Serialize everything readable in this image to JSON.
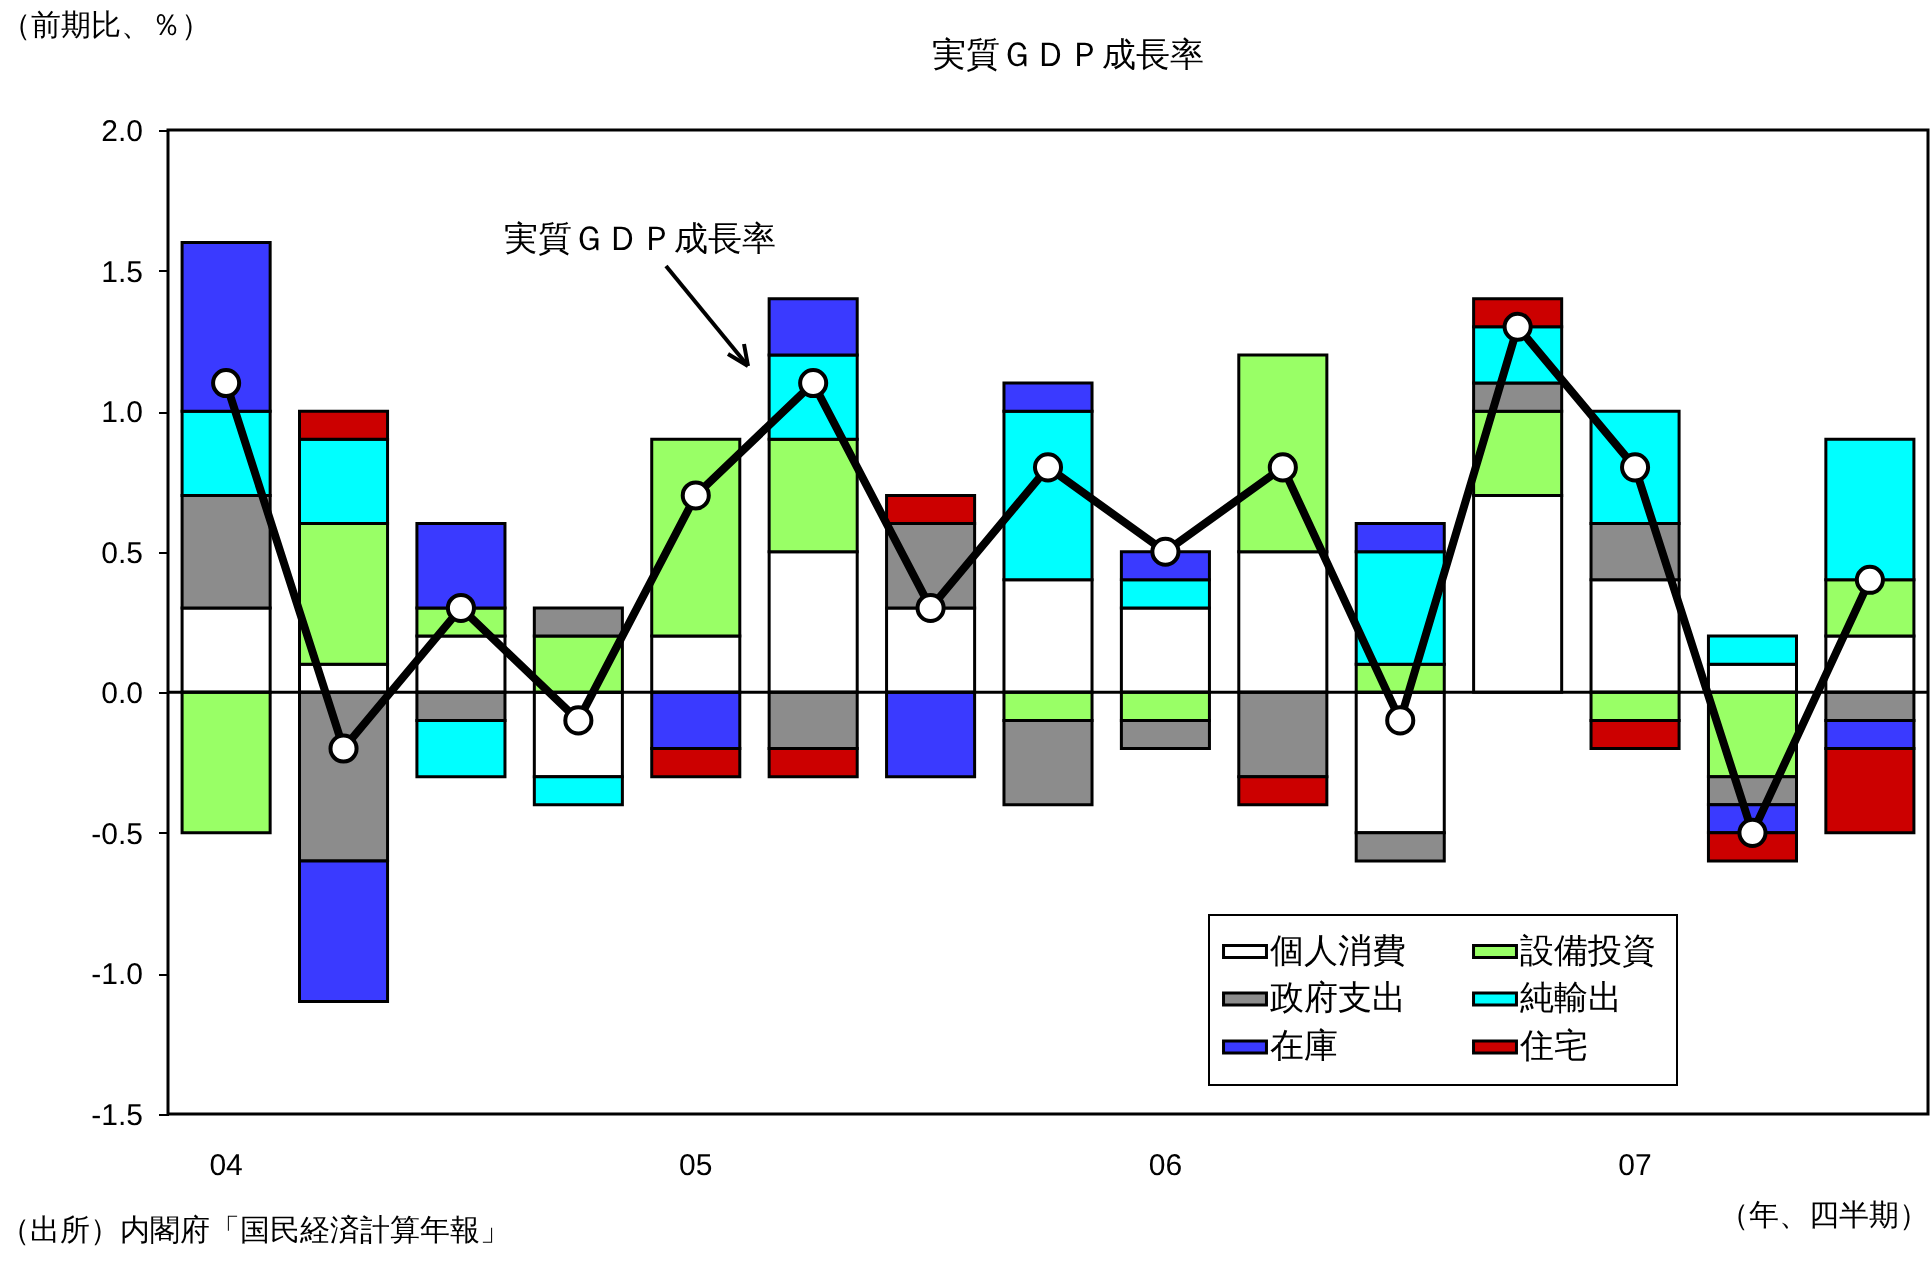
{
  "chart_data": {
    "type": "bar",
    "title": "実質ＧＤＰ成長率",
    "ylabel": "（前期比、％）",
    "xlabel": "（年、四半期）",
    "annotations": [
      "（出所）内閣府「国民経済計算年報」"
    ],
    "categories": [
      "04",
      null,
      null,
      null,
      "05",
      null,
      null,
      null,
      "06",
      null,
      null,
      null,
      "07",
      null,
      null
    ],
    "stacked": true,
    "series": [
      {
        "name": "個人消費",
        "color": "#ffffff",
        "values": [
          0.3,
          0.1,
          0.2,
          -0.3,
          0.2,
          0.5,
          0.3,
          0.4,
          0.3,
          0.5,
          -0.5,
          0.7,
          0.4,
          0.1,
          0.2
        ]
      },
      {
        "name": "設備投資",
        "color": "#99ff66",
        "values": [
          -0.5,
          0.5,
          0.1,
          0.2,
          0.7,
          0.4,
          null,
          -0.1,
          -0.1,
          0.7,
          0.1,
          0.3,
          -0.1,
          -0.3,
          0.2
        ]
      },
      {
        "name": "政府支出",
        "color": "#8c8c8c",
        "values": [
          0.4,
          -0.6,
          -0.1,
          0.1,
          null,
          -0.2,
          0.3,
          -0.3,
          -0.1,
          -0.3,
          -0.1,
          0.1,
          0.2,
          -0.1,
          -0.1
        ]
      },
      {
        "name": "純輸出",
        "color": "#00ffff",
        "values": [
          0.3,
          0.3,
          -0.2,
          -0.1,
          null,
          0.3,
          null,
          0.6,
          0.1,
          null,
          0.4,
          0.2,
          0.4,
          0.1,
          0.5
        ]
      },
      {
        "name": "在庫",
        "color": "#3a3aff",
        "values": [
          0.6,
          -0.5,
          0.3,
          null,
          -0.2,
          0.2,
          -0.3,
          0.1,
          0.1,
          null,
          0.1,
          null,
          null,
          -0.1,
          -0.1
        ]
      },
      {
        "name": "住宅",
        "color": "#cc0000",
        "values": [
          null,
          0.1,
          null,
          null,
          -0.1,
          -0.1,
          0.1,
          null,
          null,
          -0.1,
          null,
          0.1,
          -0.1,
          -0.1,
          -0.3
        ]
      },
      {
        "name": "実質ＧＤＰ成長率",
        "type": "line",
        "color": "#000000",
        "values": [
          1.1,
          -0.2,
          0.3,
          -0.1,
          0.7,
          1.1,
          0.3,
          0.8,
          0.5,
          0.8,
          -0.1,
          1.3,
          0.8,
          -0.5,
          0.4
        ]
      }
    ],
    "ylim": [
      -1.5,
      2.0
    ],
    "yticks": [
      {
        "value": -1.5,
        "label": "-1.5"
      },
      {
        "value": -1,
        "label": "-1.0"
      },
      {
        "value": -0.5,
        "label": "-0.5"
      },
      {
        "value": 0,
        "label": "0.0"
      },
      {
        "value": 0.5,
        "label": "0.5"
      },
      {
        "value": 1,
        "label": "1.0"
      },
      {
        "value": 1.5,
        "label": "1.5"
      },
      {
        "value": 2,
        "label": "2.0"
      }
    ],
    "ref_lines": [
      {
        "axis": "y",
        "value": 0,
        "color": "#000000"
      }
    ],
    "grid": false,
    "legend": "bottom right",
    "marker": "circle",
    "line_style": "solid"
  }
}
